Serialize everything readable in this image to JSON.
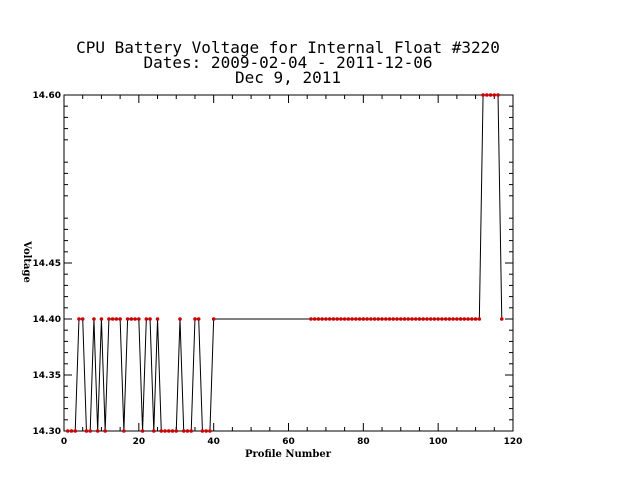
{
  "chart_data": {
    "type": "line",
    "title": [
      "CPU Battery Voltage for Internal Float #3220",
      "Dates:  2009-02-04 -  2011-12-06",
      "Dec  9, 2011"
    ],
    "xlabel": "Profile Number",
    "ylabel": "Voltage",
    "xlim": [
      0,
      120
    ],
    "ylim": [
      14.3,
      14.6
    ],
    "xticks": [
      0,
      20,
      40,
      60,
      80,
      100,
      120
    ],
    "yticks": [
      14.3,
      14.35,
      14.4,
      14.45,
      14.6
    ],
    "ytick_labels": [
      "14.30",
      "14.35",
      "14.40",
      "14.45",
      "14.60"
    ],
    "grid": false,
    "line_color": "#000000",
    "marker_color": "#cc0000",
    "series": [
      {
        "x": [
          1,
          2,
          3,
          4,
          5,
          6,
          7,
          8,
          9,
          10,
          11,
          12,
          13,
          14,
          15,
          16,
          17,
          18,
          19,
          20,
          21,
          22,
          23,
          24,
          25,
          26,
          27,
          28,
          29,
          30,
          31,
          32,
          33,
          34,
          35,
          36,
          37,
          38,
          39,
          40,
          66,
          67,
          68,
          69,
          70,
          71,
          72,
          73,
          74,
          75,
          76,
          77,
          78,
          79,
          80,
          81,
          82,
          83,
          84,
          85,
          86,
          87,
          88,
          89,
          90,
          91,
          92,
          93,
          94,
          95,
          96,
          97,
          98,
          99,
          100,
          101,
          102,
          103,
          104,
          105,
          106,
          107,
          108,
          109,
          110,
          111,
          112,
          113,
          114,
          115,
          116,
          117
        ],
        "y": [
          14.3,
          14.3,
          14.3,
          14.4,
          14.4,
          14.3,
          14.3,
          14.4,
          14.3,
          14.4,
          14.3,
          14.4,
          14.4,
          14.4,
          14.4,
          14.3,
          14.4,
          14.4,
          14.4,
          14.4,
          14.3,
          14.4,
          14.4,
          14.3,
          14.4,
          14.3,
          14.3,
          14.3,
          14.3,
          14.3,
          14.4,
          14.3,
          14.3,
          14.3,
          14.4,
          14.4,
          14.3,
          14.3,
          14.3,
          14.4,
          14.4,
          14.4,
          14.4,
          14.4,
          14.4,
          14.4,
          14.4,
          14.4,
          14.4,
          14.4,
          14.4,
          14.4,
          14.4,
          14.4,
          14.4,
          14.4,
          14.4,
          14.4,
          14.4,
          14.4,
          14.4,
          14.4,
          14.4,
          14.4,
          14.4,
          14.4,
          14.4,
          14.4,
          14.4,
          14.4,
          14.4,
          14.4,
          14.4,
          14.4,
          14.4,
          14.4,
          14.4,
          14.4,
          14.4,
          14.4,
          14.4,
          14.4,
          14.4,
          14.4,
          14.4,
          14.4,
          14.6,
          14.6,
          14.6,
          14.6,
          14.6,
          14.4
        ]
      }
    ]
  }
}
